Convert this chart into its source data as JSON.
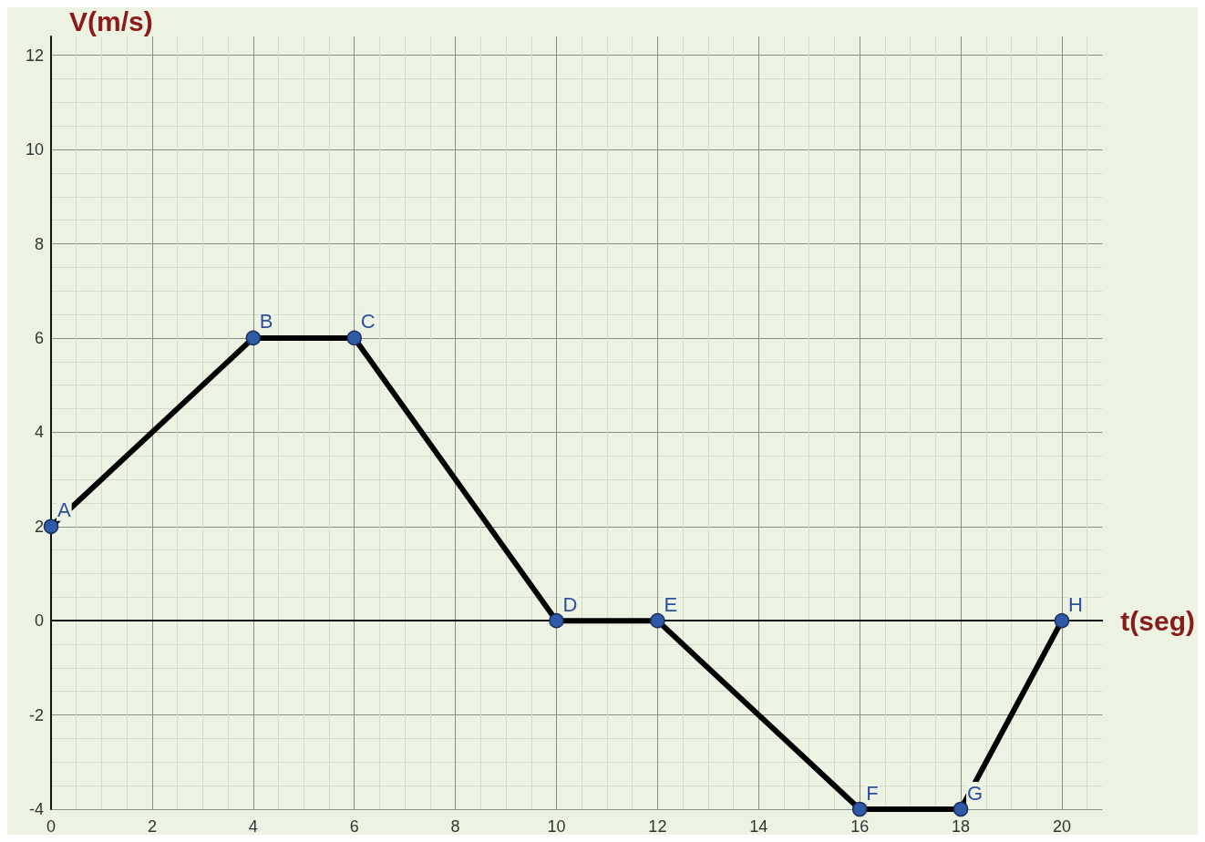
{
  "chart_data": {
    "type": "line",
    "xlabel": "t(seg)",
    "ylabel": "V(m/s)",
    "x": [
      0,
      4,
      6,
      10,
      12,
      16,
      18,
      20
    ],
    "series": [
      {
        "color": "#000000",
        "values": [
          2,
          6,
          6,
          0,
          0,
          -4,
          -4,
          0
        ]
      }
    ],
    "xlim": [
      0,
      20.8
    ],
    "xticks": [
      0,
      2,
      4,
      6,
      8,
      10,
      12,
      14,
      16,
      18,
      20
    ],
    "ylim": [
      -4,
      12.4
    ],
    "yticks": [
      -4,
      -2,
      0,
      2,
      4,
      6,
      8,
      10,
      12
    ],
    "grid": true,
    "marker": "circle",
    "line_style": "solid",
    "annotations": [
      {
        "text": "A",
        "x": 0,
        "y": 2
      },
      {
        "text": "B",
        "x": 4,
        "y": 6
      },
      {
        "text": "C",
        "x": 6,
        "y": 6
      },
      {
        "text": "D",
        "x": 10,
        "y": 0
      },
      {
        "text": "E",
        "x": 12,
        "y": 0
      },
      {
        "text": "F",
        "x": 16,
        "y": -4
      },
      {
        "text": "G",
        "x": 18,
        "y": -4
      },
      {
        "text": "H",
        "x": 20,
        "y": 0
      }
    ]
  }
}
